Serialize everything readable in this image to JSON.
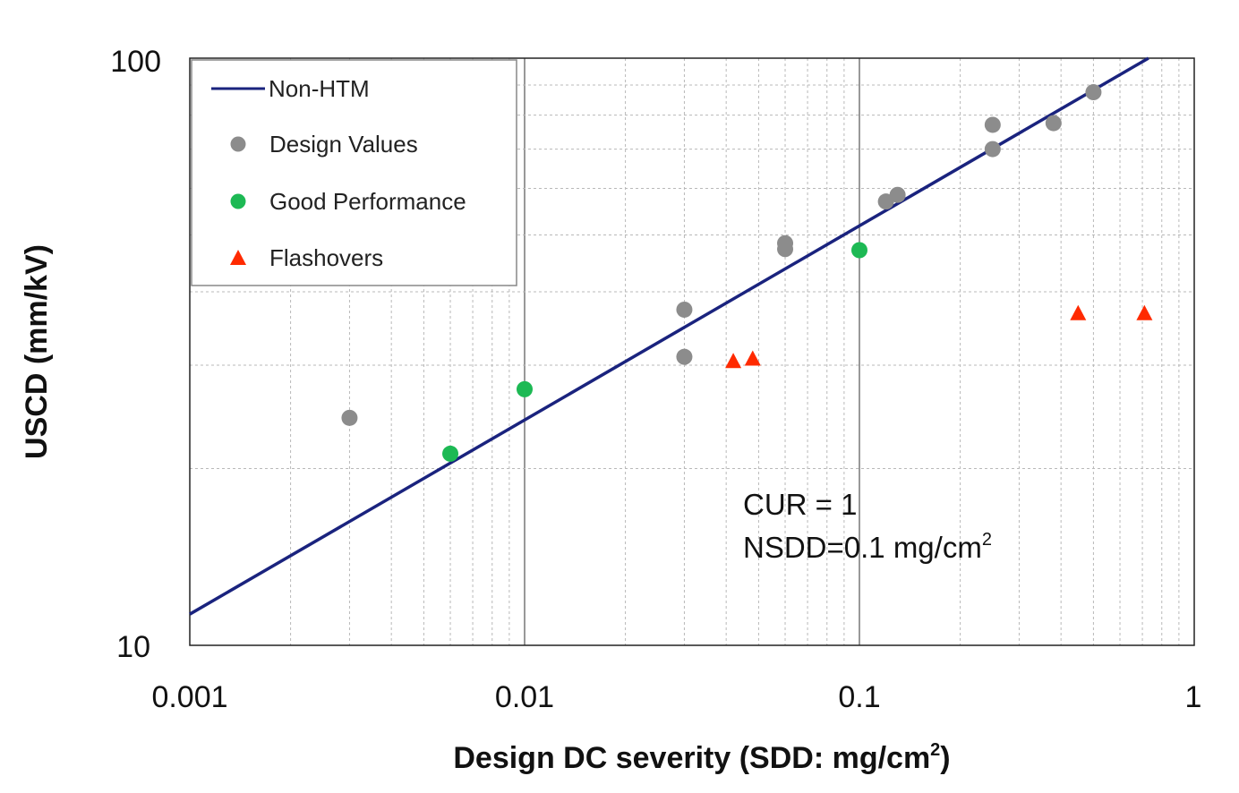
{
  "chart_data": {
    "type": "scatter",
    "title": "",
    "xlabel": "Design DC severity (SDD: mg/cm",
    "xlabel_sup": "2",
    "xlabel_end": ")",
    "ylabel": "USCD (mm/kV)",
    "xscale": "log",
    "yscale": "log",
    "xlim": [
      0.001,
      1
    ],
    "ylim": [
      10,
      100
    ],
    "grid": true,
    "x_tick_labels": [
      "0.001",
      "0.01",
      "0.1",
      "1"
    ],
    "y_tick_labels": [
      "10",
      "100"
    ],
    "legend_position": "top-left",
    "series": [
      {
        "name": "Non-HTM",
        "kind": "line",
        "color": "#1a237e",
        "points": [
          [
            0.001,
            11.3
          ],
          [
            0.73,
            100
          ]
        ]
      },
      {
        "name": "Design Values",
        "kind": "circle",
        "color": "#8c8c8c",
        "points": [
          [
            0.003,
            24.4
          ],
          [
            0.03,
            31
          ],
          [
            0.03,
            37.3
          ],
          [
            0.06,
            48.4
          ],
          [
            0.06,
            47.3
          ],
          [
            0.12,
            57
          ],
          [
            0.13,
            58.5
          ],
          [
            0.25,
            70
          ],
          [
            0.25,
            77
          ],
          [
            0.38,
            77.5
          ],
          [
            0.5,
            87.5
          ]
        ]
      },
      {
        "name": "Good Performance",
        "kind": "circle",
        "color": "#1db954",
        "points": [
          [
            0.006,
            21.2
          ],
          [
            0.01,
            27.3
          ],
          [
            0.1,
            47.1
          ]
        ]
      },
      {
        "name": "Flashovers",
        "kind": "triangle",
        "color": "#ff2a00",
        "points": [
          [
            0.042,
            30.5
          ],
          [
            0.048,
            30.8
          ],
          [
            0.45,
            36.8
          ],
          [
            0.71,
            36.8
          ]
        ]
      }
    ],
    "annotations": [
      {
        "text": "CUR = 1"
      },
      {
        "text": "NSDD=0.1 mg/cm",
        "sup": "2"
      }
    ]
  }
}
